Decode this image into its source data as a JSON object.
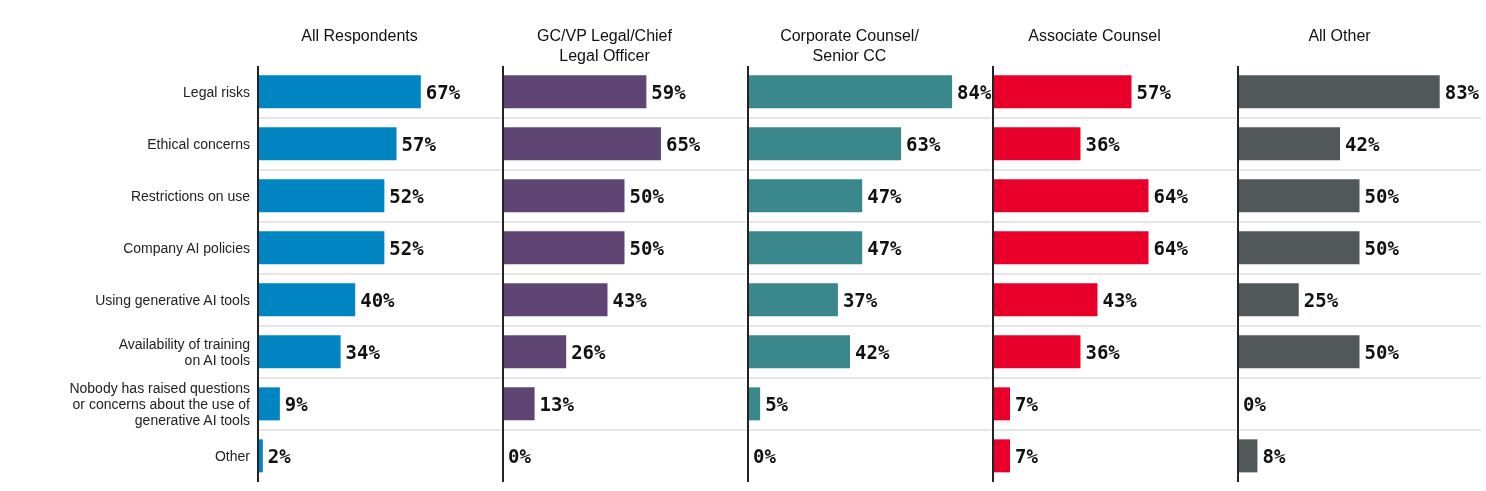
{
  "chart_data": [
    {
      "type": "bar",
      "orientation": "horizontal",
      "title": "All Respondents",
      "categories": [
        "Legal risks",
        "Ethical concerns",
        "Restrictions on use",
        "Company AI policies",
        "Using generative AI tools",
        "Availability of training\non AI tools",
        "Nobody has raised questions\nor concerns about the use of\ngenerative AI tools",
        "Other"
      ],
      "values": [
        67,
        57,
        52,
        52,
        40,
        34,
        9,
        2
      ],
      "value_labels": [
        "67%",
        "57%",
        "52%",
        "52%",
        "40%",
        "34%",
        "9%",
        "2%"
      ],
      "color": "#0085c3",
      "xlim": [
        0,
        100
      ],
      "tick_labels": "y",
      "grid": "y"
    },
    {
      "type": "bar",
      "orientation": "horizontal",
      "title": "GC/VP Legal/Chief\nLegal Officer",
      "categories": [
        null,
        null,
        null,
        null,
        null,
        null,
        null,
        null
      ],
      "values": [
        59,
        65,
        50,
        50,
        43,
        26,
        13,
        0
      ],
      "value_labels": [
        "59%",
        "65%",
        "50%",
        "50%",
        "43%",
        "26%",
        "13%",
        "0%"
      ],
      "color": "#5e4573",
      "xlim": [
        0,
        100
      ],
      "tick_labels": false,
      "grid": "y"
    },
    {
      "type": "bar",
      "orientation": "horizontal",
      "title": "Corporate Counsel/\nSenior CC",
      "categories": [
        null,
        null,
        null,
        null,
        null,
        null,
        null,
        null
      ],
      "values": [
        84,
        63,
        47,
        47,
        37,
        42,
        5,
        0
      ],
      "value_labels": [
        "84%",
        "63%",
        "47%",
        "47%",
        "37%",
        "42%",
        "5%",
        "0%"
      ],
      "color": "#3a888c",
      "xlim": [
        0,
        100
      ],
      "tick_labels": false,
      "grid": "y"
    },
    {
      "type": "bar",
      "orientation": "horizontal",
      "title": "Associate Counsel",
      "categories": [
        null,
        null,
        null,
        null,
        null,
        null,
        null,
        null
      ],
      "values": [
        57,
        36,
        64,
        64,
        43,
        36,
        7,
        7
      ],
      "value_labels": [
        "57%",
        "36%",
        "64%",
        "64%",
        "43%",
        "36%",
        "7%",
        "7%"
      ],
      "color": "#e8002a",
      "xlim": [
        0,
        100
      ],
      "tick_labels": false,
      "grid": "y"
    },
    {
      "type": "bar",
      "orientation": "horizontal",
      "title": "All Other",
      "categories": [
        null,
        null,
        null,
        null,
        null,
        null,
        null,
        null
      ],
      "values": [
        83,
        42,
        50,
        50,
        25,
        50,
        0,
        8
      ],
      "value_labels": [
        "83%",
        "42%",
        "50%",
        "50%",
        "25%",
        "50%",
        "0%",
        "8%"
      ],
      "color": "#525759",
      "xlim": [
        0,
        100
      ],
      "tick_labels": false,
      "grid": "y"
    }
  ]
}
